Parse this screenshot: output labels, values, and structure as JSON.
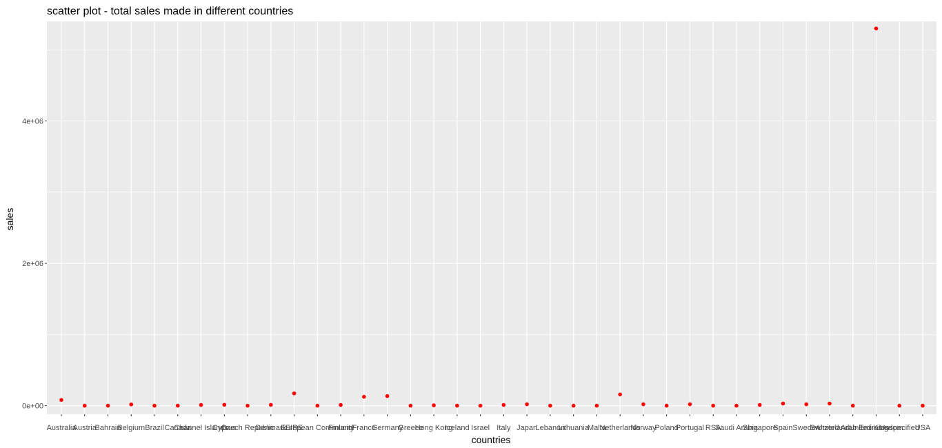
{
  "chart_data": {
    "type": "scatter",
    "title": "scatter plot - total sales made in different countries",
    "xlabel": "countries",
    "ylabel": "sales",
    "categories": [
      "Australia",
      "Austria",
      "Bahrain",
      "Belgium",
      "Brazil",
      "Canada",
      "Channel Islands",
      "Cyprus",
      "Czech Republic",
      "Denmark",
      "EIRE",
      "European Community",
      "Finland",
      "France",
      "Germany",
      "Greece",
      "Hong Kong",
      "Iceland",
      "Israel",
      "Italy",
      "Japan",
      "Lebanon",
      "Lithuania",
      "Malta",
      "Netherlands",
      "Norway",
      "Poland",
      "Portugal",
      "RSA",
      "Saudi Arabia",
      "Singapore",
      "Spain",
      "Sweden",
      "Switzerland",
      "United Arab Emirates",
      "United Kingdom",
      "Unspecified",
      "USA"
    ],
    "values": [
      81000,
      0,
      0,
      18000,
      0,
      0,
      10000,
      13000,
      0,
      12000,
      173000,
      0,
      10000,
      125000,
      135000,
      0,
      5000,
      0,
      0,
      10000,
      20000,
      0,
      0,
      0,
      158000,
      20000,
      0,
      20000,
      0,
      0,
      10000,
      30000,
      20000,
      30000,
      0,
      5300000,
      0,
      0
    ],
    "ylim": [
      -120000,
      5400000
    ],
    "yticks": [
      0,
      2000000,
      4000000
    ],
    "ytick_labels": [
      "0e+00",
      "2e+06",
      "4e+06"
    ],
    "grid": true,
    "point_color": "#ff0000",
    "panel_color": "#ebebeb",
    "grid_color": "#ffffff"
  }
}
